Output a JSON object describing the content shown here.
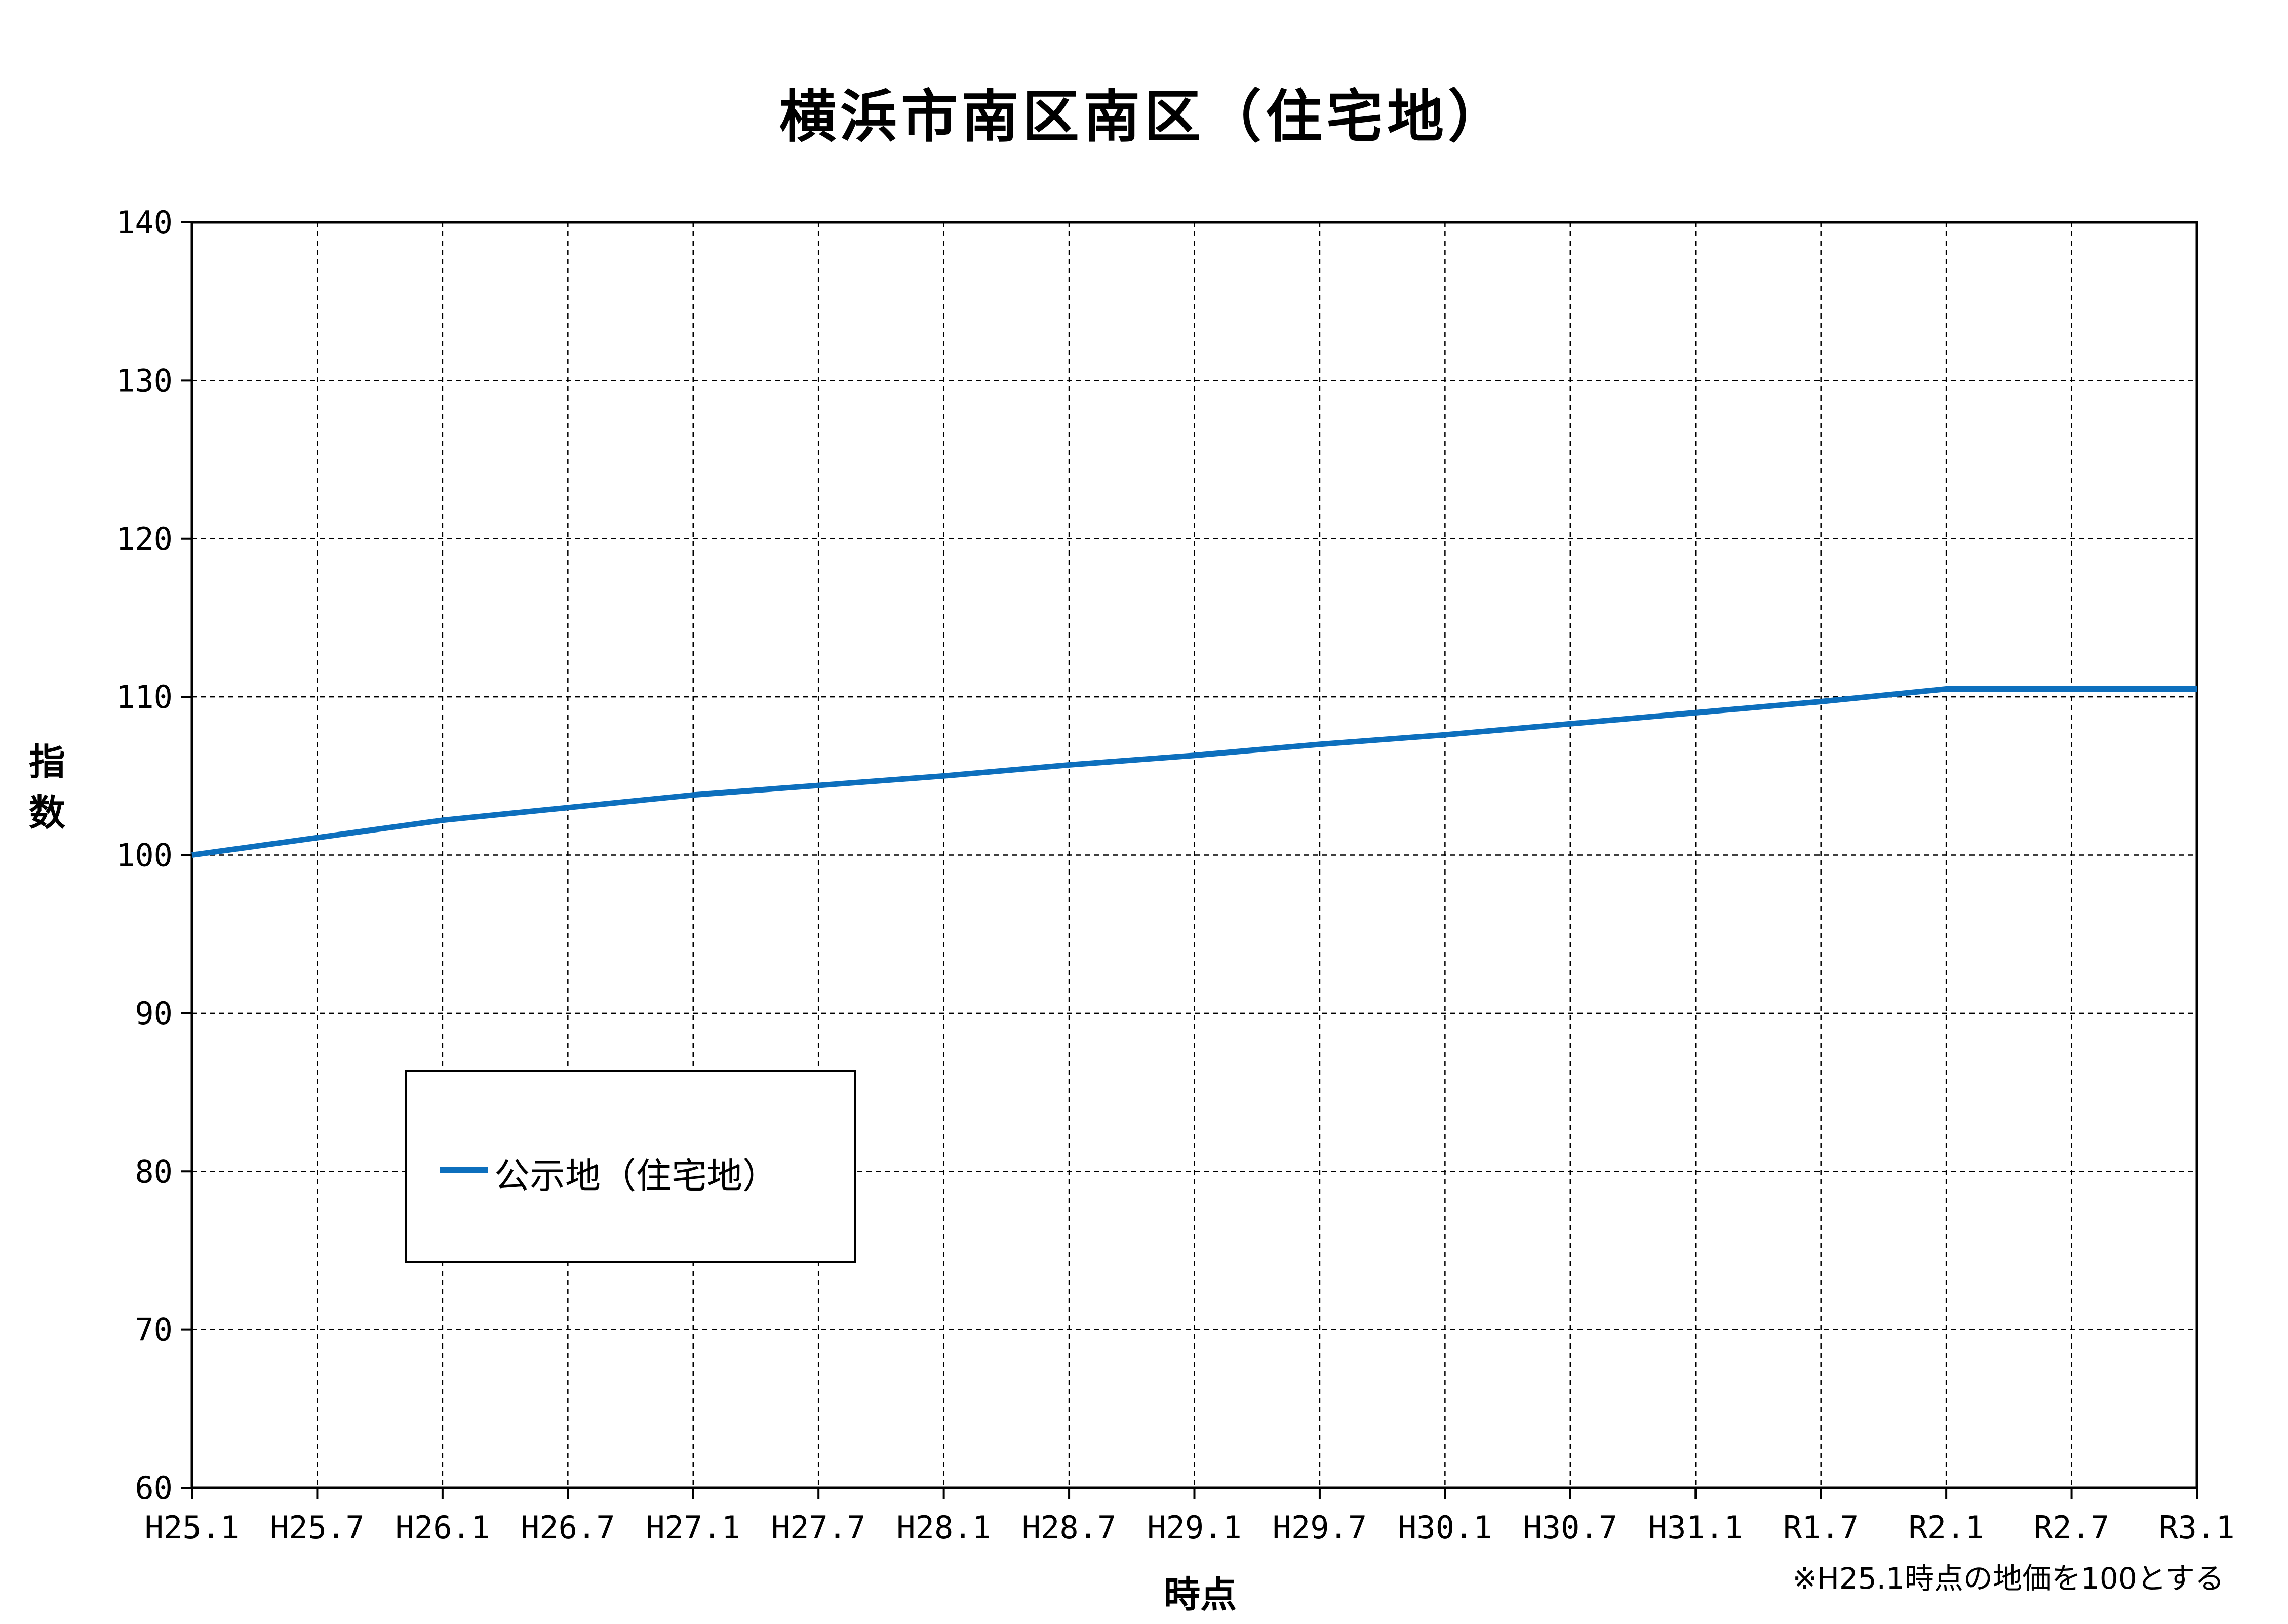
{
  "chart_data": {
    "type": "line",
    "title": "横浜市南区南区（住宅地）",
    "xlabel": "時点",
    "ylabel": "指数",
    "categories": [
      "H25.1",
      "H25.7",
      "H26.1",
      "H26.7",
      "H27.1",
      "H27.7",
      "H28.1",
      "H28.7",
      "H29.1",
      "H29.7",
      "H30.1",
      "H30.7",
      "H31.1",
      "R1.7",
      "R2.1",
      "R2.7",
      "R3.1"
    ],
    "ylim": [
      60,
      140
    ],
    "yticks": [
      "60",
      "70",
      "80",
      "90",
      "100",
      "110",
      "120",
      "130",
      "140"
    ],
    "grid": true,
    "legend_position": "lower-left",
    "series": [
      {
        "name": "公示地（住宅地）",
        "color": "#0d6fbd",
        "values": [
          100.0,
          101.1,
          102.2,
          103.0,
          103.8,
          104.4,
          105.0,
          105.7,
          106.3,
          107.0,
          107.6,
          108.3,
          109.0,
          109.7,
          110.5,
          110.5,
          110.5
        ]
      }
    ],
    "note": "※H25.1時点の地価を100とする"
  }
}
